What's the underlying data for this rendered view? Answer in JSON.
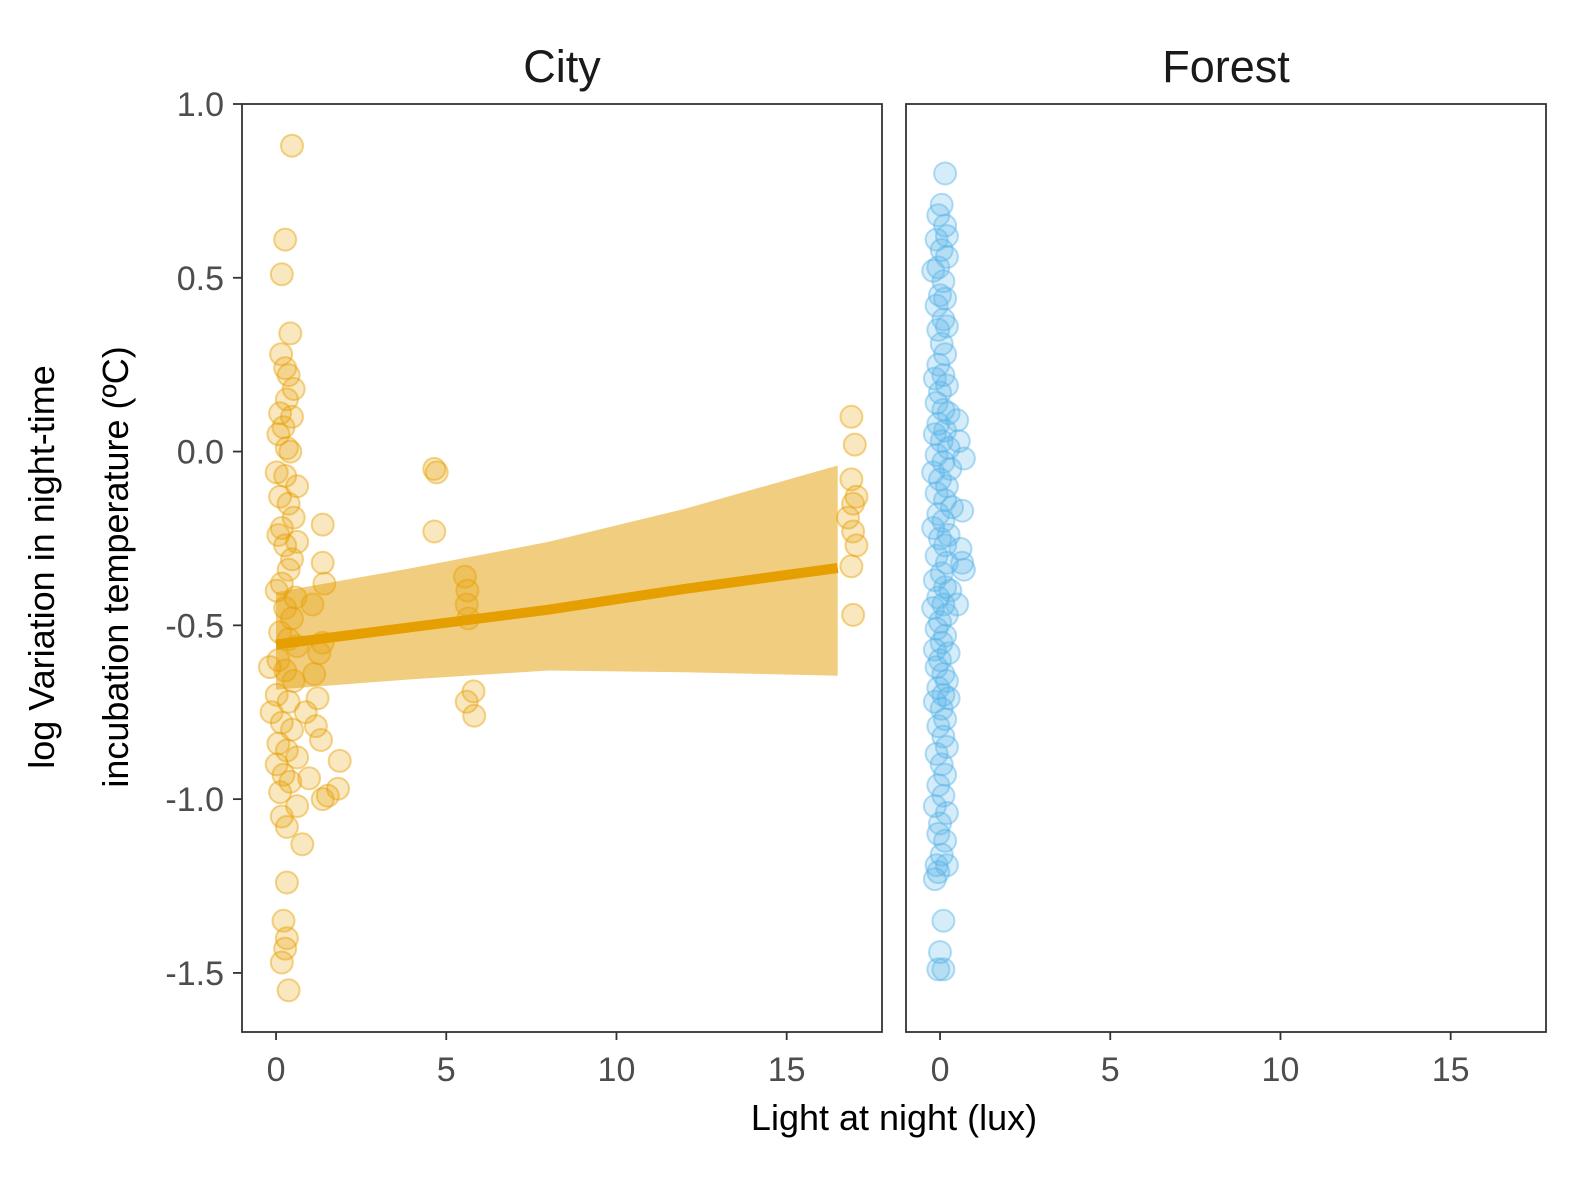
{
  "chart_data": {
    "type": "scatter",
    "xlabel": "Light at night (lux)",
    "ylabel_lines": [
      "log Variation in night-time",
      "incubation temperature (ºC)"
    ],
    "xlim": [
      -1,
      17.8
    ],
    "ylim": [
      -1.67,
      1.0
    ],
    "x_ticks": [
      0,
      5,
      10,
      15
    ],
    "x_tick_labels": [
      "0",
      "5",
      "10",
      "15"
    ],
    "y_ticks": [
      1.0,
      0.5,
      0.0,
      -0.5,
      -1.0,
      -1.5
    ],
    "y_tick_labels": [
      "1.0",
      "0.5",
      "0.0",
      "-0.5",
      "-1.0",
      "-1.5"
    ],
    "grid": false,
    "legend": "none",
    "panels": [
      {
        "name": "City",
        "color": "#E69F00",
        "ribbon_color": "#EFC469",
        "fit": {
          "x": [
            0,
            4,
            8,
            12,
            16.5
          ],
          "y": [
            -0.555,
            -0.505,
            -0.455,
            -0.395,
            -0.335
          ],
          "lower": [
            -0.685,
            -0.655,
            -0.63,
            -0.635,
            -0.645
          ],
          "upper": [
            -0.405,
            -0.335,
            -0.26,
            -0.165,
            -0.04
          ]
        },
        "points": [
          [
            0.47,
            0.88
          ],
          [
            0.27,
            0.61
          ],
          [
            0.17,
            0.51
          ],
          [
            0.42,
            0.34
          ],
          [
            0.15,
            0.28
          ],
          [
            0.27,
            0.24
          ],
          [
            0.37,
            0.22
          ],
          [
            0.52,
            0.18
          ],
          [
            0.32,
            0.15
          ],
          [
            0.12,
            0.11
          ],
          [
            0.47,
            0.1
          ],
          [
            0.22,
            0.07
          ],
          [
            0.07,
            0.05
          ],
          [
            0.32,
            0.01
          ],
          [
            0.42,
            0.0
          ],
          [
            0.02,
            -0.06
          ],
          [
            0.27,
            -0.07
          ],
          [
            0.62,
            -0.1
          ],
          [
            0.12,
            -0.13
          ],
          [
            0.37,
            -0.15
          ],
          [
            0.52,
            -0.19
          ],
          [
            0.17,
            -0.22
          ],
          [
            0.62,
            -0.26
          ],
          [
            0.07,
            -0.24
          ],
          [
            0.27,
            -0.27
          ],
          [
            0.47,
            -0.31
          ],
          [
            0.37,
            -0.34
          ],
          [
            0.17,
            -0.38
          ],
          [
            0.02,
            -0.4
          ],
          [
            0.57,
            -0.42
          ],
          [
            0.27,
            -0.45
          ],
          [
            0.47,
            -0.48
          ],
          [
            0.12,
            -0.52
          ],
          [
            0.37,
            -0.54
          ],
          [
            0.62,
            -0.56
          ],
          [
            -0.18,
            -0.62
          ],
          [
            0.07,
            -0.6
          ],
          [
            0.27,
            -0.63
          ],
          [
            0.52,
            -0.66
          ],
          [
            0.02,
            -0.7
          ],
          [
            0.37,
            -0.72
          ],
          [
            -0.13,
            -0.75
          ],
          [
            0.17,
            -0.78
          ],
          [
            0.47,
            -0.8
          ],
          [
            0.07,
            -0.84
          ],
          [
            0.32,
            -0.86
          ],
          [
            0.62,
            -0.88
          ],
          [
            0.02,
            -0.9
          ],
          [
            0.22,
            -0.93
          ],
          [
            0.42,
            -0.95
          ],
          [
            0.12,
            -0.98
          ],
          [
            0.62,
            -1.02
          ],
          [
            0.17,
            -1.05
          ],
          [
            0.32,
            -1.08
          ],
          [
            0.77,
            -1.13
          ],
          [
            0.32,
            -1.24
          ],
          [
            0.22,
            -1.35
          ],
          [
            0.32,
            -1.4
          ],
          [
            0.27,
            -1.43
          ],
          [
            0.17,
            -1.47
          ],
          [
            0.37,
            -1.55
          ],
          [
            0.87,
            -0.75
          ],
          [
            0.97,
            -0.94
          ],
          [
            1.07,
            -0.44
          ],
          [
            1.12,
            -0.64
          ],
          [
            1.22,
            -0.71
          ],
          [
            1.17,
            -0.79
          ],
          [
            1.32,
            -0.83
          ],
          [
            1.27,
            -0.58
          ],
          [
            1.37,
            -0.55
          ],
          [
            1.37,
            -0.32
          ],
          [
            1.37,
            -0.21
          ],
          [
            1.42,
            -0.38
          ],
          [
            1.52,
            -0.99
          ],
          [
            1.37,
            -1.0
          ],
          [
            1.87,
            -0.89
          ],
          [
            1.82,
            -0.97
          ],
          [
            4.65,
            -0.05
          ],
          [
            4.72,
            -0.06
          ],
          [
            4.65,
            -0.23
          ],
          [
            5.55,
            -0.36
          ],
          [
            5.62,
            -0.4
          ],
          [
            5.6,
            -0.44
          ],
          [
            5.65,
            -0.48
          ],
          [
            5.6,
            -0.72
          ],
          [
            5.8,
            -0.69
          ],
          [
            5.82,
            -0.76
          ],
          [
            16.9,
            0.1
          ],
          [
            17.0,
            0.02
          ],
          [
            16.9,
            -0.08
          ],
          [
            17.05,
            -0.13
          ],
          [
            16.95,
            -0.15
          ],
          [
            16.8,
            -0.19
          ],
          [
            16.95,
            -0.23
          ],
          [
            17.05,
            -0.27
          ],
          [
            16.9,
            -0.33
          ],
          [
            16.95,
            -0.47
          ]
        ]
      },
      {
        "name": "Forest",
        "color": "#56B4E9",
        "points": [
          [
            0.15,
            0.8
          ],
          [
            0.05,
            0.71
          ],
          [
            -0.05,
            0.68
          ],
          [
            0.15,
            0.65
          ],
          [
            -0.1,
            0.61
          ],
          [
            0.2,
            0.62
          ],
          [
            0.05,
            0.58
          ],
          [
            0.2,
            0.56
          ],
          [
            -0.05,
            0.53
          ],
          [
            -0.2,
            0.52
          ],
          [
            0.1,
            0.49
          ],
          [
            0.0,
            0.45
          ],
          [
            0.15,
            0.44
          ],
          [
            -0.1,
            0.42
          ],
          [
            0.1,
            0.38
          ],
          [
            0.2,
            0.36
          ],
          [
            -0.05,
            0.35
          ],
          [
            0.05,
            0.31
          ],
          [
            0.15,
            0.28
          ],
          [
            -0.05,
            0.25
          ],
          [
            0.1,
            0.22
          ],
          [
            -0.15,
            0.21
          ],
          [
            0.2,
            0.19
          ],
          [
            0.0,
            0.17
          ],
          [
            -0.1,
            0.14
          ],
          [
            0.1,
            0.12
          ],
          [
            0.25,
            0.11
          ],
          [
            0.5,
            0.09
          ],
          [
            -0.05,
            0.08
          ],
          [
            0.15,
            0.06
          ],
          [
            -0.15,
            0.05
          ],
          [
            0.05,
            0.03
          ],
          [
            0.55,
            0.03
          ],
          [
            0.25,
            0.01
          ],
          [
            -0.1,
            -0.01
          ],
          [
            0.7,
            -0.02
          ],
          [
            0.1,
            -0.03
          ],
          [
            0.3,
            -0.05
          ],
          [
            -0.2,
            -0.06
          ],
          [
            0.0,
            -0.08
          ],
          [
            0.2,
            -0.1
          ],
          [
            -0.1,
            -0.12
          ],
          [
            0.15,
            -0.14
          ],
          [
            0.35,
            -0.16
          ],
          [
            0.65,
            -0.17
          ],
          [
            -0.05,
            -0.18
          ],
          [
            0.1,
            -0.2
          ],
          [
            -0.2,
            -0.22
          ],
          [
            0.25,
            -0.24
          ],
          [
            0.0,
            -0.25
          ],
          [
            0.15,
            -0.27
          ],
          [
            0.6,
            -0.28
          ],
          [
            -0.1,
            -0.3
          ],
          [
            0.2,
            -0.32
          ],
          [
            0.65,
            -0.32
          ],
          [
            0.7,
            -0.34
          ],
          [
            0.05,
            -0.35
          ],
          [
            -0.15,
            -0.37
          ],
          [
            0.15,
            -0.39
          ],
          [
            0.3,
            -0.4
          ],
          [
            -0.05,
            -0.42
          ],
          [
            0.1,
            -0.44
          ],
          [
            0.5,
            -0.44
          ],
          [
            -0.2,
            -0.45
          ],
          [
            0.2,
            -0.47
          ],
          [
            0.0,
            -0.49
          ],
          [
            -0.1,
            -0.51
          ],
          [
            0.15,
            -0.53
          ],
          [
            0.05,
            -0.55
          ],
          [
            -0.15,
            -0.57
          ],
          [
            0.25,
            -0.58
          ],
          [
            0.0,
            -0.6
          ],
          [
            -0.1,
            -0.62
          ],
          [
            0.1,
            -0.64
          ],
          [
            0.2,
            -0.66
          ],
          [
            -0.05,
            -0.68
          ],
          [
            0.1,
            -0.7
          ],
          [
            0.25,
            -0.71
          ],
          [
            -0.15,
            -0.72
          ],
          [
            0.05,
            -0.74
          ],
          [
            0.15,
            -0.77
          ],
          [
            -0.05,
            -0.79
          ],
          [
            0.1,
            -0.82
          ],
          [
            0.2,
            -0.85
          ],
          [
            -0.1,
            -0.87
          ],
          [
            0.05,
            -0.9
          ],
          [
            0.15,
            -0.93
          ],
          [
            -0.05,
            -0.96
          ],
          [
            0.1,
            -0.99
          ],
          [
            -0.15,
            -1.02
          ],
          [
            0.2,
            -1.04
          ],
          [
            0.0,
            -1.07
          ],
          [
            -0.05,
            -1.1
          ],
          [
            0.15,
            -1.12
          ],
          [
            0.05,
            -1.16
          ],
          [
            -0.1,
            -1.19
          ],
          [
            0.2,
            -1.19
          ],
          [
            -0.05,
            -1.21
          ],
          [
            -0.15,
            -1.23
          ],
          [
            0.1,
            -1.35
          ],
          [
            0.0,
            -1.44
          ],
          [
            -0.05,
            -1.49
          ],
          [
            0.1,
            -1.49
          ]
        ]
      }
    ]
  }
}
